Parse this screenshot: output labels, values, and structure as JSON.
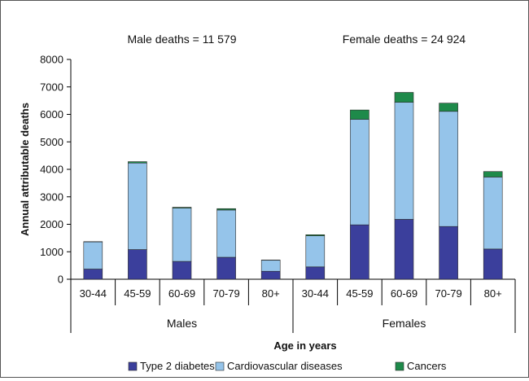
{
  "chart_data": {
    "type": "bar",
    "stacked": true,
    "ylabel": "Annual attributable deaths",
    "xlabel": "Age in years",
    "ylim": [
      0,
      8000
    ],
    "yticks": [
      0,
      1000,
      2000,
      3000,
      4000,
      5000,
      6000,
      7000,
      8000
    ],
    "groups": [
      {
        "label": "Males",
        "annotation": "Male deaths = 11 579",
        "categories": [
          "30-44",
          "45-59",
          "60-69",
          "70-79",
          "80+"
        ]
      },
      {
        "label": "Females",
        "annotation": "Female deaths = 24 924",
        "categories": [
          "30-44",
          "45-59",
          "60-69",
          "70-79",
          "80+"
        ]
      }
    ],
    "series": [
      {
        "name": "Type 2 diabetes",
        "color": "#3b3f9c",
        "values": [
          370,
          1080,
          650,
          800,
          290,
          450,
          1980,
          2180,
          1920,
          1100
        ]
      },
      {
        "name": "Cardiovascular diseases",
        "color": "#95c4ea",
        "values": [
          990,
          3150,
          1940,
          1720,
          400,
          1130,
          3840,
          4260,
          4190,
          2620
        ]
      },
      {
        "name": "Cancers",
        "color": "#1e8a4a",
        "values": [
          10,
          50,
          30,
          50,
          10,
          40,
          340,
          360,
          300,
          200
        ]
      }
    ],
    "legend": "bottom",
    "grid": false
  }
}
